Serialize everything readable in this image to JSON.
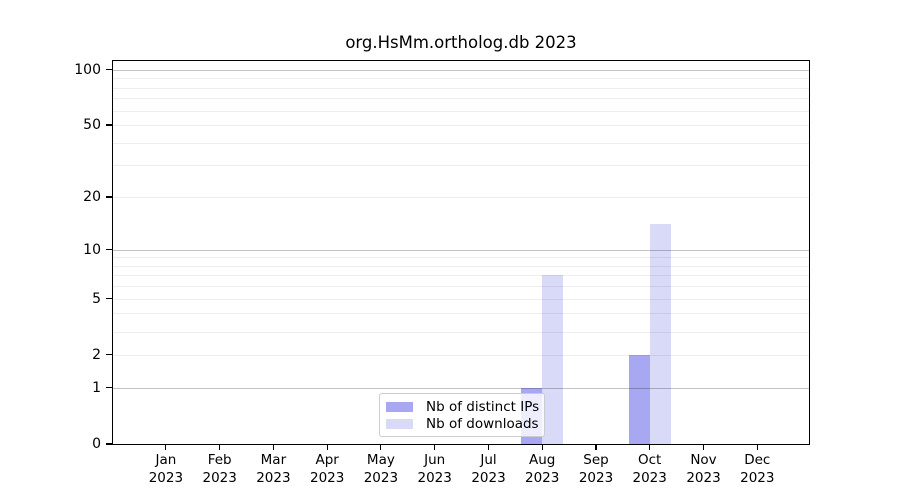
{
  "chart_data": {
    "type": "bar",
    "title": "org.HsMm.ortholog.db 2023",
    "year_label": "2023",
    "categories": [
      "Jan",
      "Feb",
      "Mar",
      "Apr",
      "May",
      "Jun",
      "Jul",
      "Aug",
      "Sep",
      "Oct",
      "Nov",
      "Dec"
    ],
    "series": [
      {
        "name": "Nb of distinct IPs",
        "color": "#a7a7f2",
        "values": [
          0,
          0,
          0,
          0,
          0,
          0,
          0,
          1,
          0,
          2,
          0,
          0
        ]
      },
      {
        "name": "Nb of downloads",
        "color": "#d9d9f8",
        "values": [
          0,
          0,
          0,
          0,
          0,
          0,
          0,
          7,
          0,
          14,
          0,
          0
        ]
      }
    ],
    "xlabel": "",
    "ylabel": "",
    "y_scale": "log1p",
    "y_ticks": [
      0,
      1,
      2,
      5,
      10,
      20,
      50,
      100
    ],
    "ylim": [
      0,
      113
    ],
    "grid": {
      "on": true,
      "major": [
        1,
        10,
        100
      ],
      "minor": [
        2,
        3,
        4,
        5,
        6,
        7,
        8,
        9,
        20,
        30,
        40,
        50,
        60,
        70,
        80,
        90
      ]
    },
    "legend_position": "inside-bottom-center"
  },
  "colors": {
    "bar_distinct_ips": "#a7a7f2",
    "bar_downloads": "#d9d9f8",
    "grid_major": "#c6c6c6",
    "grid_minor": "#efefef",
    "axis_box": "#000000",
    "legend_border": "#cccccc",
    "background": "#ffffff"
  }
}
